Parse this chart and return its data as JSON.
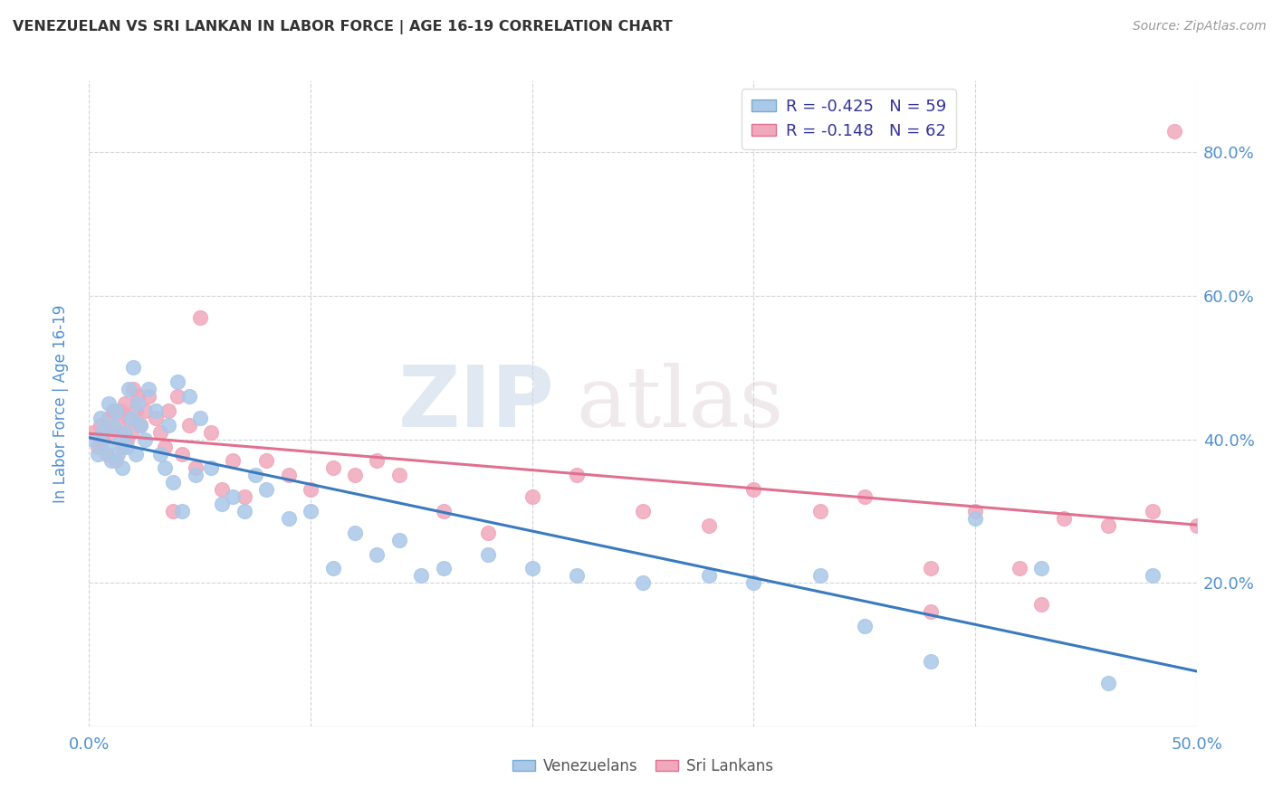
{
  "title": "VENEZUELAN VS SRI LANKAN IN LABOR FORCE | AGE 16-19 CORRELATION CHART",
  "source": "Source: ZipAtlas.com",
  "ylabel": "In Labor Force | Age 16-19",
  "xlim": [
    0.0,
    0.5
  ],
  "ylim": [
    0.0,
    0.9
  ],
  "xticks": [
    0.0,
    0.1,
    0.2,
    0.3,
    0.4,
    0.5
  ],
  "xtick_labels": [
    "0.0%",
    "",
    "",
    "",
    "",
    "50.0%"
  ],
  "yticks_right": [
    0.2,
    0.4,
    0.6,
    0.8
  ],
  "ytick_labels_right": [
    "20.0%",
    "40.0%",
    "60.0%",
    "80.0%"
  ],
  "watermark_zip": "ZIP",
  "watermark_atlas": "atlas",
  "ven_line_color": "#3a7abf",
  "sri_line_color": "#e07090",
  "ven_scatter_color": "#aac8e8",
  "sri_scatter_color": "#f0a8bc",
  "background_color": "#ffffff",
  "grid_color": "#c8c8d0",
  "title_color": "#333333",
  "axis_label_color": "#5090d0",
  "source_color": "#999999",
  "legend_entries": [
    {
      "label": "R = -0.425   N = 59",
      "facecolor": "#aac8e8",
      "edgecolor": "#7aaad0"
    },
    {
      "label": "R = -0.148   N = 62",
      "facecolor": "#f0a8bc",
      "edgecolor": "#e07090"
    }
  ],
  "legend_bottom": [
    {
      "label": "Venezuelans",
      "facecolor": "#aac8e8",
      "edgecolor": "#7aaad0"
    },
    {
      "label": "Sri Lankans",
      "facecolor": "#f0a8bc",
      "edgecolor": "#e07090"
    }
  ],
  "venezuelan_x": [
    0.002,
    0.004,
    0.005,
    0.006,
    0.008,
    0.009,
    0.01,
    0.011,
    0.012,
    0.013,
    0.014,
    0.015,
    0.016,
    0.017,
    0.018,
    0.019,
    0.02,
    0.021,
    0.022,
    0.023,
    0.025,
    0.027,
    0.03,
    0.032,
    0.034,
    0.036,
    0.038,
    0.04,
    0.042,
    0.045,
    0.048,
    0.05,
    0.055,
    0.06,
    0.065,
    0.07,
    0.075,
    0.08,
    0.09,
    0.1,
    0.11,
    0.12,
    0.13,
    0.14,
    0.15,
    0.16,
    0.18,
    0.2,
    0.22,
    0.25,
    0.28,
    0.3,
    0.33,
    0.35,
    0.38,
    0.4,
    0.43,
    0.46,
    0.48
  ],
  "venezuelan_y": [
    0.4,
    0.38,
    0.43,
    0.41,
    0.39,
    0.45,
    0.37,
    0.42,
    0.44,
    0.38,
    0.4,
    0.36,
    0.41,
    0.39,
    0.47,
    0.43,
    0.5,
    0.38,
    0.45,
    0.42,
    0.4,
    0.47,
    0.44,
    0.38,
    0.36,
    0.42,
    0.34,
    0.48,
    0.3,
    0.46,
    0.35,
    0.43,
    0.36,
    0.31,
    0.32,
    0.3,
    0.35,
    0.33,
    0.29,
    0.3,
    0.22,
    0.27,
    0.24,
    0.26,
    0.21,
    0.22,
    0.24,
    0.22,
    0.21,
    0.2,
    0.21,
    0.2,
    0.21,
    0.14,
    0.09,
    0.29,
    0.22,
    0.06,
    0.21
  ],
  "srilanka_x": [
    0.002,
    0.004,
    0.005,
    0.006,
    0.008,
    0.009,
    0.01,
    0.011,
    0.012,
    0.013,
    0.014,
    0.015,
    0.016,
    0.017,
    0.018,
    0.019,
    0.02,
    0.021,
    0.022,
    0.023,
    0.025,
    0.027,
    0.03,
    0.032,
    0.034,
    0.036,
    0.038,
    0.04,
    0.042,
    0.045,
    0.048,
    0.05,
    0.055,
    0.06,
    0.065,
    0.07,
    0.08,
    0.09,
    0.1,
    0.11,
    0.12,
    0.13,
    0.14,
    0.16,
    0.18,
    0.2,
    0.22,
    0.25,
    0.28,
    0.3,
    0.33,
    0.35,
    0.38,
    0.4,
    0.42,
    0.44,
    0.46,
    0.48,
    0.49,
    0.5,
    0.38,
    0.43
  ],
  "srilanka_y": [
    0.41,
    0.39,
    0.42,
    0.4,
    0.38,
    0.43,
    0.41,
    0.44,
    0.37,
    0.42,
    0.44,
    0.39,
    0.45,
    0.4,
    0.43,
    0.41,
    0.47,
    0.44,
    0.46,
    0.42,
    0.44,
    0.46,
    0.43,
    0.41,
    0.39,
    0.44,
    0.3,
    0.46,
    0.38,
    0.42,
    0.36,
    0.57,
    0.41,
    0.33,
    0.37,
    0.32,
    0.37,
    0.35,
    0.33,
    0.36,
    0.35,
    0.37,
    0.35,
    0.3,
    0.27,
    0.32,
    0.35,
    0.3,
    0.28,
    0.33,
    0.3,
    0.32,
    0.22,
    0.3,
    0.22,
    0.29,
    0.28,
    0.3,
    0.83,
    0.28,
    0.16,
    0.17
  ]
}
